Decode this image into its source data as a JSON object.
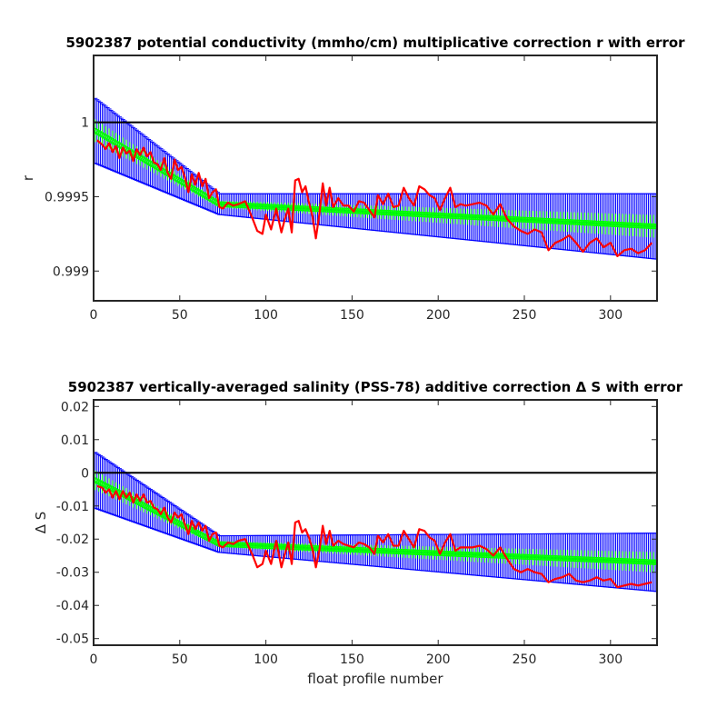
{
  "chart_data": [
    {
      "type": "line",
      "title": "5902387 potential conductivity (mmho/cm) multiplicative correction r with error",
      "xlabel": "",
      "ylabel": "r",
      "xlim": [
        0,
        327
      ],
      "ylim": [
        0.9988,
        1.00045
      ],
      "xticks": [
        0,
        50,
        100,
        150,
        200,
        250,
        300
      ],
      "xtick_labels": [
        "0",
        "50",
        "100",
        "150",
        "200",
        "250",
        "300"
      ],
      "yticks": [
        0.999,
        0.9995,
        1
      ],
      "ytick_labels": [
        "0.999",
        "0.9995",
        "1"
      ],
      "reference_line": 1,
      "grid": false,
      "colors": {
        "errorbar": "#0000ff",
        "fit": "#00ff00",
        "data": "#ff0000",
        "reference": "#000000"
      },
      "fit": {
        "x": [
          0,
          73,
          327
        ],
        "y": [
          0.99995,
          0.99945,
          0.9993
        ]
      },
      "error_halfwidth": {
        "x": [
          0,
          73,
          327
        ],
        "y": [
          0.00022,
          7e-05,
          0.00022
        ]
      },
      "series": [
        {
          "x": [
            2,
            5,
            7,
            9,
            11,
            13,
            15,
            17,
            19,
            21,
            23,
            25,
            27,
            29,
            31,
            33,
            35,
            37,
            39,
            41,
            43,
            45,
            47,
            49,
            51,
            53,
            55,
            57,
            59,
            61,
            63,
            65,
            67,
            69,
            71,
            73,
            75,
            78,
            81,
            84,
            88,
            92,
            95,
            98,
            100,
            103,
            106,
            109,
            111,
            113,
            115,
            117,
            119,
            121,
            123,
            125,
            127,
            129,
            131,
            133,
            135,
            137,
            139,
            142,
            145,
            148,
            151,
            154,
            157,
            160,
            163,
            165,
            168,
            171,
            174,
            177,
            180,
            183,
            186,
            189,
            192,
            195,
            198,
            201,
            204,
            207,
            210,
            213,
            216,
            220,
            224,
            228,
            232,
            236,
            240,
            244,
            248,
            252,
            256,
            260,
            264,
            268,
            272,
            276,
            280,
            284,
            288,
            292,
            296,
            300,
            304,
            308,
            312,
            316,
            320,
            324
          ],
          "y": [
            0.99988,
            0.99985,
            0.99982,
            0.99986,
            0.9998,
            0.99984,
            0.99976,
            0.99983,
            0.99979,
            0.99981,
            0.99974,
            0.99982,
            0.99978,
            0.99983,
            0.99977,
            0.9998,
            0.99973,
            0.99972,
            0.99968,
            0.99976,
            0.99966,
            0.99962,
            0.99975,
            0.99968,
            0.9997,
            0.99963,
            0.99953,
            0.99965,
            0.99958,
            0.99966,
            0.99957,
            0.99962,
            0.99949,
            0.99953,
            0.99955,
            0.99943,
            0.99942,
            0.99946,
            0.99944,
            0.99945,
            0.99947,
            0.99936,
            0.99927,
            0.99925,
            0.99938,
            0.99928,
            0.99942,
            0.99926,
            0.99935,
            0.99942,
            0.99926,
            0.99961,
            0.99962,
            0.99953,
            0.99957,
            0.99946,
            0.99937,
            0.99922,
            0.99938,
            0.99959,
            0.99944,
            0.99956,
            0.99943,
            0.99949,
            0.99944,
            0.99944,
            0.9994,
            0.99947,
            0.99946,
            0.99941,
            0.99936,
            0.99951,
            0.99945,
            0.99952,
            0.99943,
            0.99944,
            0.99956,
            0.99949,
            0.99944,
            0.99957,
            0.99955,
            0.99951,
            0.99949,
            0.99941,
            0.99949,
            0.99956,
            0.99943,
            0.99945,
            0.99944,
            0.99945,
            0.99946,
            0.99944,
            0.99938,
            0.99945,
            0.99935,
            0.9993,
            0.99927,
            0.99925,
            0.99928,
            0.99926,
            0.99914,
            0.99919,
            0.99921,
            0.99924,
            0.99919,
            0.99913,
            0.99919,
            0.99922,
            0.99916,
            0.99919,
            0.9991,
            0.99914,
            0.99915,
            0.99912,
            0.99914,
            0.99919
          ]
        }
      ]
    },
    {
      "type": "line",
      "title": "5902387 vertically-averaged salinity (PSS-78) additive correction Δ S with error",
      "xlabel": "float profile number",
      "ylabel": "Δ S",
      "xlim": [
        0,
        327
      ],
      "ylim": [
        -0.052,
        0.022
      ],
      "xticks": [
        0,
        50,
        100,
        150,
        200,
        250,
        300
      ],
      "xtick_labels": [
        "0",
        "50",
        "100",
        "150",
        "200",
        "250",
        "300"
      ],
      "yticks": [
        -0.05,
        -0.04,
        -0.03,
        -0.02,
        -0.01,
        0,
        0.01,
        0.02
      ],
      "ytick_labels": [
        "-0.05",
        "-0.04",
        "-0.03",
        "-0.02",
        "-0.01",
        "0",
        "0.01",
        "0.02"
      ],
      "reference_line": 0,
      "grid": false,
      "colors": {
        "errorbar": "#0000ff",
        "fit": "#00ff00",
        "data": "#ff0000",
        "reference": "#000000"
      },
      "fit": {
        "x": [
          0,
          73,
          327
        ],
        "y": [
          -0.002,
          -0.0215,
          -0.027
        ]
      },
      "error_halfwidth": {
        "x": [
          0,
          73,
          327
        ],
        "y": [
          0.0085,
          0.0025,
          0.0088
        ]
      },
      "series": [
        {
          "x": [
            2,
            5,
            7,
            9,
            11,
            13,
            15,
            17,
            19,
            21,
            23,
            25,
            27,
            29,
            31,
            33,
            35,
            37,
            39,
            41,
            43,
            45,
            47,
            49,
            51,
            53,
            55,
            57,
            59,
            61,
            63,
            65,
            67,
            69,
            71,
            73,
            75,
            78,
            81,
            84,
            88,
            92,
            95,
            98,
            100,
            103,
            106,
            109,
            111,
            113,
            115,
            117,
            119,
            121,
            123,
            125,
            127,
            129,
            131,
            133,
            135,
            137,
            139,
            142,
            145,
            148,
            151,
            154,
            157,
            160,
            163,
            165,
            168,
            171,
            174,
            177,
            180,
            183,
            186,
            189,
            192,
            195,
            198,
            201,
            204,
            207,
            210,
            213,
            216,
            220,
            224,
            228,
            232,
            236,
            240,
            244,
            248,
            252,
            256,
            260,
            264,
            268,
            272,
            276,
            280,
            284,
            288,
            292,
            296,
            300,
            304,
            308,
            312,
            316,
            320,
            324
          ],
          "y": [
            -0.004,
            -0.0045,
            -0.006,
            -0.005,
            -0.0075,
            -0.0055,
            -0.008,
            -0.0055,
            -0.0075,
            -0.006,
            -0.009,
            -0.0065,
            -0.0085,
            -0.0065,
            -0.009,
            -0.0085,
            -0.0105,
            -0.011,
            -0.0125,
            -0.0105,
            -0.0135,
            -0.015,
            -0.012,
            -0.0135,
            -0.0125,
            -0.0155,
            -0.0185,
            -0.0145,
            -0.017,
            -0.015,
            -0.0175,
            -0.016,
            -0.0205,
            -0.0185,
            -0.018,
            -0.022,
            -0.0225,
            -0.021,
            -0.0215,
            -0.0205,
            -0.02,
            -0.0245,
            -0.0285,
            -0.0275,
            -0.0235,
            -0.0275,
            -0.0205,
            -0.0285,
            -0.0245,
            -0.021,
            -0.0275,
            -0.015,
            -0.0145,
            -0.018,
            -0.017,
            -0.0195,
            -0.023,
            -0.0285,
            -0.0235,
            -0.016,
            -0.0215,
            -0.0175,
            -0.022,
            -0.0205,
            -0.0215,
            -0.022,
            -0.0225,
            -0.021,
            -0.0215,
            -0.0225,
            -0.0245,
            -0.019,
            -0.021,
            -0.0185,
            -0.022,
            -0.022,
            -0.0175,
            -0.02,
            -0.0225,
            -0.017,
            -0.0175,
            -0.0195,
            -0.0205,
            -0.0245,
            -0.021,
            -0.0185,
            -0.0235,
            -0.0225,
            -0.0225,
            -0.0225,
            -0.022,
            -0.023,
            -0.025,
            -0.0225,
            -0.026,
            -0.029,
            -0.03,
            -0.029,
            -0.03,
            -0.0305,
            -0.033,
            -0.032,
            -0.0315,
            -0.0305,
            -0.0325,
            -0.033,
            -0.0325,
            -0.0315,
            -0.0325,
            -0.032,
            -0.0345,
            -0.034,
            -0.0335,
            -0.034,
            -0.0335,
            -0.033
          ]
        }
      ]
    }
  ]
}
